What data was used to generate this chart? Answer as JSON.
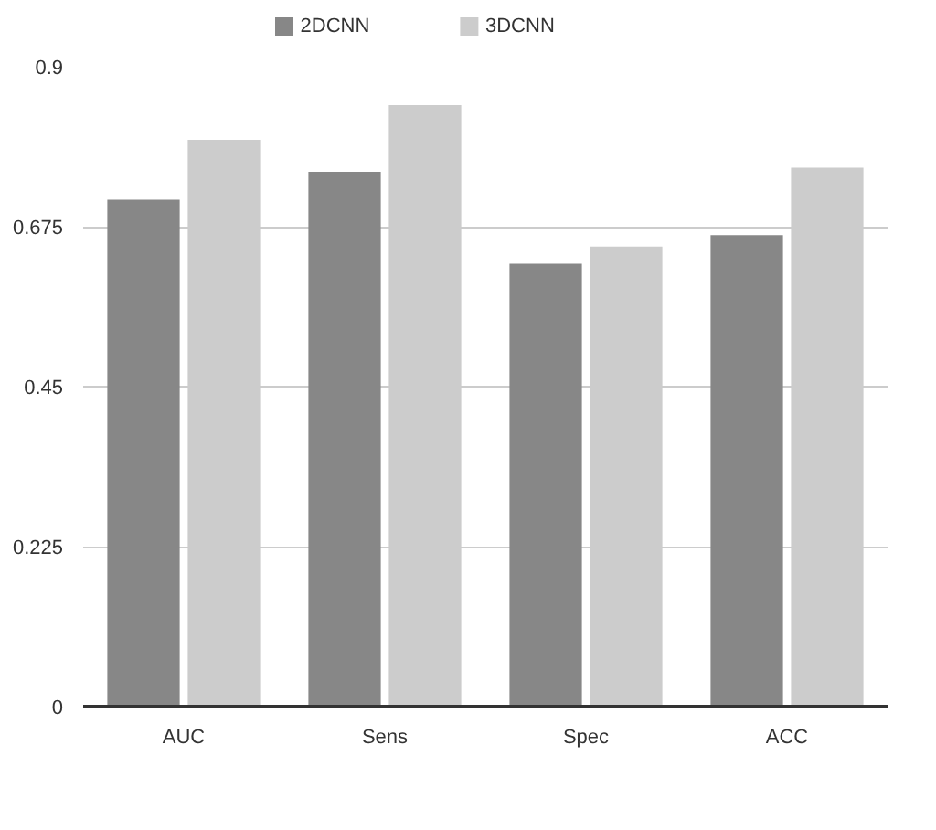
{
  "chart_data": {
    "type": "bar",
    "categories": [
      "AUC",
      "Sens",
      "Spec",
      "ACC"
    ],
    "series": [
      {
        "name": "2DCNN",
        "color": "#878787",
        "values": [
          0.713,
          0.752,
          0.623,
          0.663
        ]
      },
      {
        "name": "3DCNN",
        "color": "#cccccc",
        "values": [
          0.797,
          0.846,
          0.647,
          0.758
        ]
      }
    ],
    "ylim": [
      0,
      0.9
    ],
    "yticks": [
      0,
      0.225,
      0.45,
      0.675,
      0.9
    ],
    "grid": "y",
    "legend": "top"
  }
}
